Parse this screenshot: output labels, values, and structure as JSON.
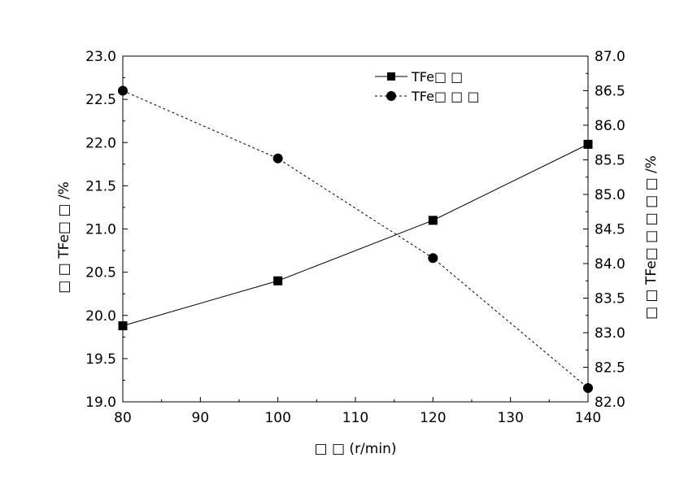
{
  "chart_data": {
    "type": "line",
    "title": "",
    "xlabel": "□ □ (r/min)",
    "ylabel_left": "□ □ TFe□ □ /%",
    "ylabel_right": "□ □ TFe□ □ □ □ □ /%",
    "x": [
      80,
      100,
      120,
      140
    ],
    "x_ticks": [
      80,
      90,
      100,
      110,
      120,
      130,
      140
    ],
    "xlim": [
      80,
      140
    ],
    "ylim_left": [
      19.0,
      23.0
    ],
    "ylim_right": [
      82.0,
      87.0
    ],
    "y_ticks_left": [
      "19.0",
      "19.5",
      "20.0",
      "20.5",
      "21.0",
      "21.5",
      "22.0",
      "22.5",
      "23.0"
    ],
    "y_ticks_right": [
      "82.0",
      "82.5",
      "83.0",
      "83.5",
      "84.0",
      "84.5",
      "85.0",
      "85.5",
      "86.0",
      "86.5",
      "87.0"
    ],
    "grid": false,
    "legend_position": "top-center",
    "series": [
      {
        "name": "TFe□ □",
        "axis": "left",
        "marker": "square",
        "line": "solid",
        "color": "#000000",
        "values": [
          19.88,
          20.4,
          21.1,
          21.98
        ]
      },
      {
        "name": "TFe□ □ □",
        "axis": "right",
        "marker": "circle",
        "line": "dashed",
        "color": "#000000",
        "values": [
          86.5,
          85.52,
          84.08,
          82.2
        ]
      }
    ]
  }
}
